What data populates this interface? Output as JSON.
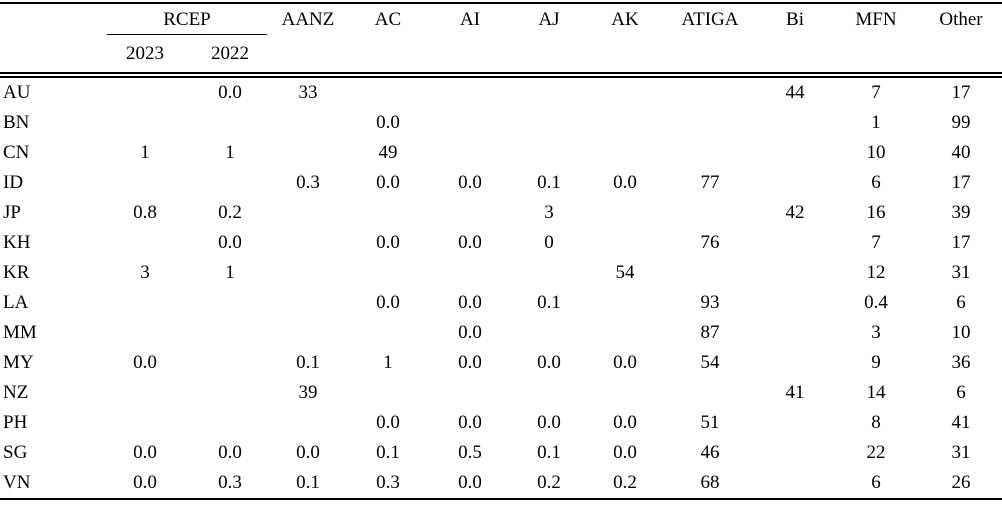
{
  "table": {
    "group_header": {
      "label": "RCEP",
      "sub_labels": [
        "2023",
        "2022"
      ]
    },
    "column_headers": [
      "AANZ",
      "AC",
      "AI",
      "AJ",
      "AK",
      "ATIGA",
      "Bi",
      "MFN",
      "Other"
    ],
    "rows": [
      {
        "label": "AU",
        "values": [
          "",
          "0.0",
          "33",
          "",
          "",
          "",
          "",
          "",
          "44",
          "7",
          "17"
        ]
      },
      {
        "label": "BN",
        "values": [
          "",
          "",
          "",
          "0.0",
          "",
          "",
          "",
          "",
          "",
          "1",
          "99"
        ]
      },
      {
        "label": "CN",
        "values": [
          "1",
          "1",
          "",
          "49",
          "",
          "",
          "",
          "",
          "",
          "10",
          "40"
        ]
      },
      {
        "label": "ID",
        "values": [
          "",
          "",
          "0.3",
          "0.0",
          "0.0",
          "0.1",
          "0.0",
          "77",
          "",
          "6",
          "17"
        ]
      },
      {
        "label": "JP",
        "values": [
          "0.8",
          "0.2",
          "",
          "",
          "",
          "3",
          "",
          "",
          "42",
          "16",
          "39"
        ]
      },
      {
        "label": "KH",
        "values": [
          "",
          "0.0",
          "",
          "0.0",
          "0.0",
          "0",
          "",
          "76",
          "",
          "7",
          "17"
        ]
      },
      {
        "label": "KR",
        "values": [
          "3",
          "1",
          "",
          "",
          "",
          "",
          "54",
          "",
          "",
          "12",
          "31"
        ]
      },
      {
        "label": "LA",
        "values": [
          "",
          "",
          "",
          "0.0",
          "0.0",
          "0.1",
          "",
          "93",
          "",
          "0.4",
          "6"
        ]
      },
      {
        "label": "MM",
        "values": [
          "",
          "",
          "",
          "",
          "0.0",
          "",
          "",
          "87",
          "",
          "3",
          "10"
        ]
      },
      {
        "label": "MY",
        "values": [
          "0.0",
          "",
          "0.1",
          "1",
          "0.0",
          "0.0",
          "0.0",
          "54",
          "",
          "9",
          "36"
        ]
      },
      {
        "label": "NZ",
        "values": [
          "",
          "",
          "39",
          "",
          "",
          "",
          "",
          "",
          "41",
          "14",
          "6"
        ]
      },
      {
        "label": "PH",
        "values": [
          "",
          "",
          "",
          "0.0",
          "0.0",
          "0.0",
          "0.0",
          "51",
          "",
          "8",
          "41"
        ]
      },
      {
        "label": "SG",
        "values": [
          "0.0",
          "0.0",
          "0.0",
          "0.1",
          "0.5",
          "0.1",
          "0.0",
          "46",
          "",
          "22",
          "31"
        ]
      },
      {
        "label": "VN",
        "values": [
          "0.0",
          "0.3",
          "0.1",
          "0.3",
          "0.0",
          "0.2",
          "0.2",
          "68",
          "",
          "6",
          "26"
        ]
      }
    ]
  }
}
